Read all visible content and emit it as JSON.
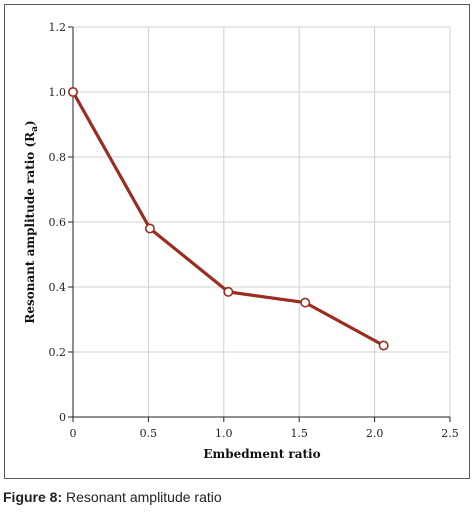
{
  "caption": {
    "label": "Figure 8:",
    "text": " Resonant amplitude ratio"
  },
  "chart_data": {
    "type": "line",
    "xlabel": "Embedment ratio",
    "ylabel_main": "Resonant amplitude ratio (R",
    "ylabel_sub": "a",
    "ylabel_end": ")",
    "xlim": [
      0,
      2.5
    ],
    "ylim": [
      0,
      1.2
    ],
    "x_ticks": [
      0,
      0.5,
      1.0,
      1.5,
      2.0,
      2.5
    ],
    "x_tick_labels": [
      "0",
      "0.5",
      "1.0",
      "1.5",
      "2.0",
      "2.5"
    ],
    "y_ticks": [
      0,
      0.2,
      0.4,
      0.6,
      0.8,
      1.0,
      1.2
    ],
    "y_tick_labels": [
      "0",
      "0.2",
      "0.4",
      "0.6",
      "0.8",
      "1.0",
      "1.2"
    ],
    "grid": true,
    "series": [
      {
        "color": "#9b2d20",
        "marker_fill": "#ffffff",
        "points": [
          {
            "x": 0.0,
            "y": 1.0
          },
          {
            "x": 0.51,
            "y": 0.58
          },
          {
            "x": 1.03,
            "y": 0.385
          },
          {
            "x": 1.54,
            "y": 0.352
          },
          {
            "x": 2.06,
            "y": 0.22
          }
        ]
      }
    ]
  }
}
